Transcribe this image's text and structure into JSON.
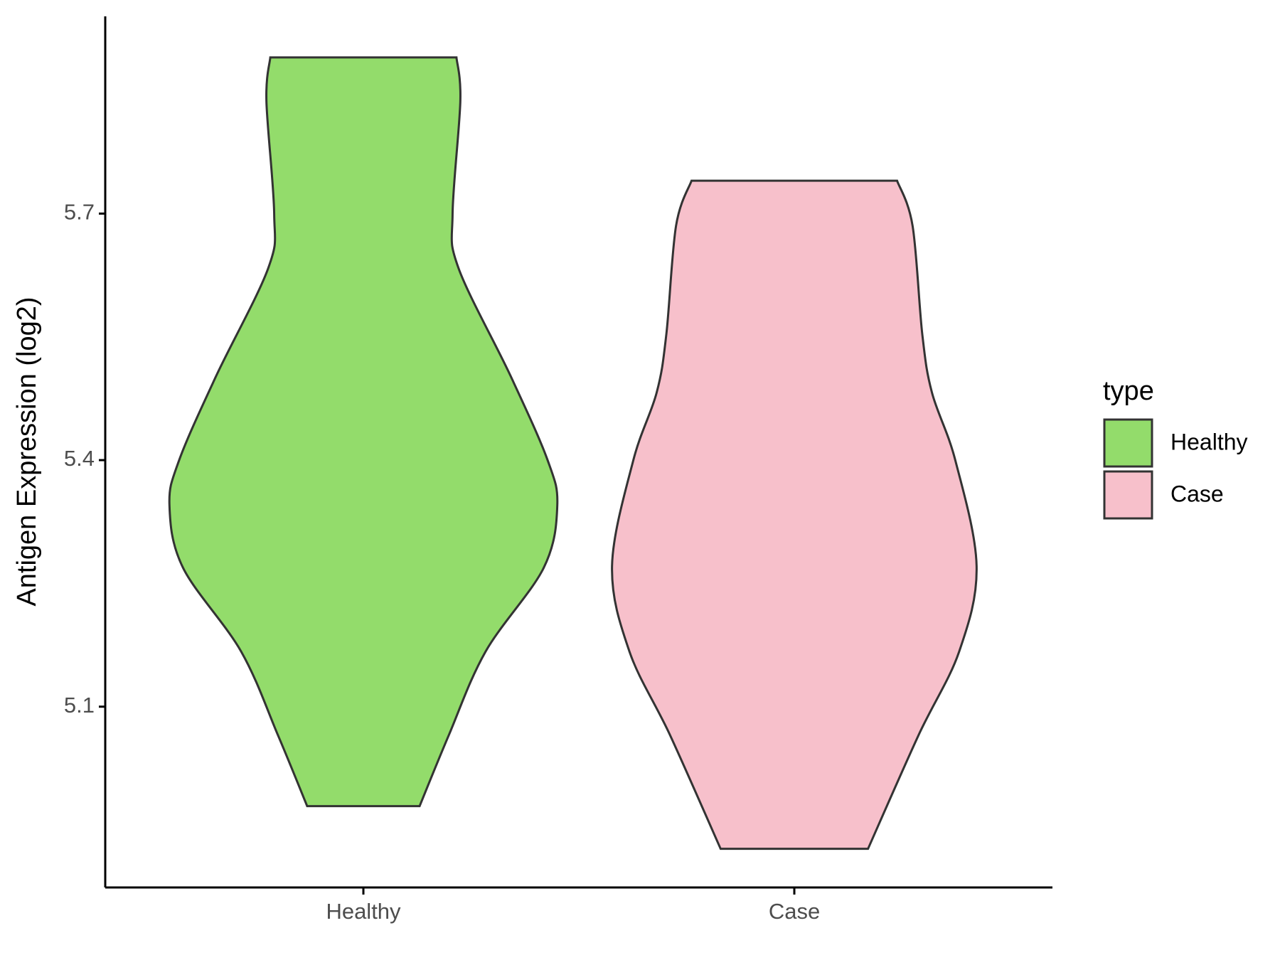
{
  "chart_data": {
    "type": "violin",
    "y_label": "Antigen Expression (log2)",
    "categories": [
      "Healthy",
      "Case"
    ],
    "legend_title": "type",
    "legend_position": "right",
    "series": [
      {
        "name": "Healthy",
        "color": "#93dc6b",
        "y": [
          5.89,
          5.837,
          5.7,
          5.634,
          5.502,
          5.4,
          5.345,
          5.269,
          5.167,
          5.065,
          4.979
        ],
        "density": [
          0.48,
          0.5,
          0.46,
          0.49,
          0.76,
          0.95,
          1.0,
          0.93,
          0.63,
          0.44,
          0.29
        ]
      },
      {
        "name": "Case",
        "color": "#f7c0cb",
        "y": [
          5.74,
          5.685,
          5.553,
          5.482,
          5.4,
          5.271,
          5.167,
          5.065,
          4.927
        ],
        "density": [
          0.53,
          0.61,
          0.66,
          0.71,
          0.83,
          0.94,
          0.85,
          0.64,
          0.38
        ]
      }
    ],
    "ylim": [
      4.88,
      5.94
    ],
    "yticks": [
      5.1,
      5.4,
      5.7
    ]
  }
}
